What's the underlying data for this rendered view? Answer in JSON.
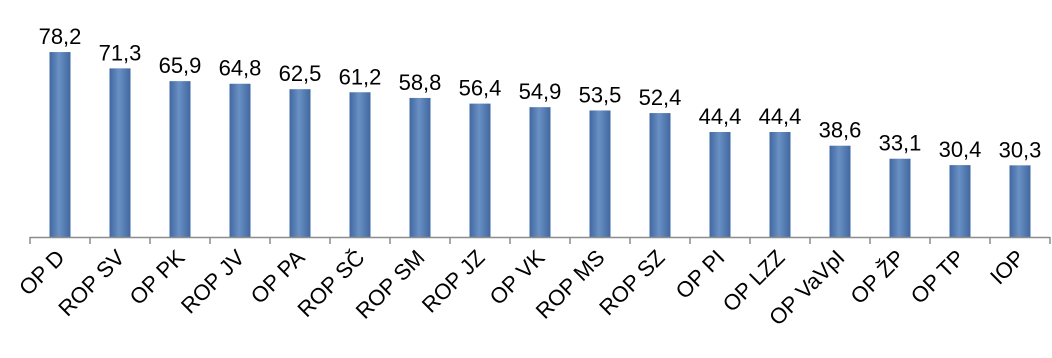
{
  "chart_data": {
    "type": "bar",
    "categories": [
      "OP D",
      "ROP SV",
      "OP PK",
      "ROP JV",
      "OP PA",
      "ROP SČ",
      "ROP SM",
      "ROP JZ",
      "OP VK",
      "ROP MS",
      "ROP SZ",
      "OP PI",
      "OP LZZ",
      "OP VaVpI",
      "OP ŽP",
      "OP TP",
      "IOP"
    ],
    "values": [
      78.2,
      71.3,
      65.9,
      64.8,
      62.5,
      61.2,
      58.8,
      56.4,
      54.9,
      53.5,
      52.4,
      44.4,
      44.4,
      38.6,
      33.1,
      30.4,
      30.3
    ],
    "value_labels": [
      "78,2",
      "71,3",
      "65,9",
      "64,8",
      "62,5",
      "61,2",
      "58,8",
      "56,4",
      "54,9",
      "53,5",
      "52,4",
      "44,4",
      "44,4",
      "38,6",
      "33,1",
      "30,4",
      "30,3"
    ],
    "ylim": [
      0,
      80
    ],
    "grid": false,
    "legend": "none",
    "bar_color": "#4068a0",
    "bar_highlight_color": "#6a90c4",
    "axis_color": "#8c8c8c"
  }
}
